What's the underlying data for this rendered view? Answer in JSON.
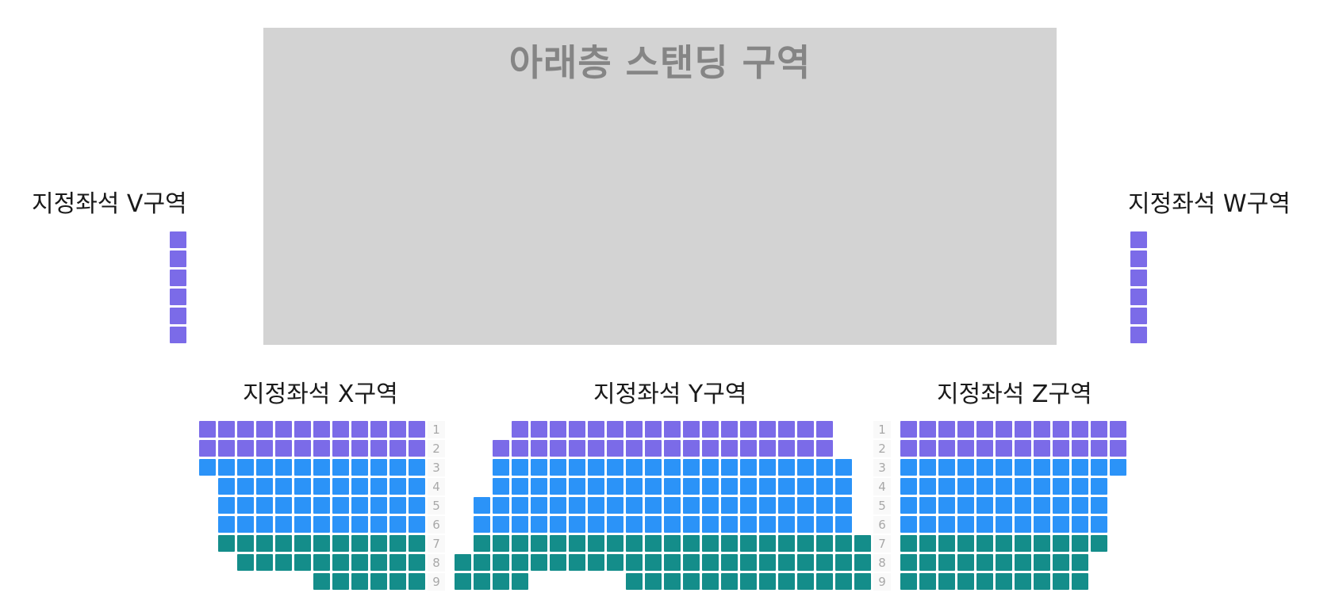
{
  "stage": {
    "label": "아래층 스탠딩 구역"
  },
  "zones": {
    "V": {
      "title": "지정좌석 V구역",
      "seats": 6
    },
    "W": {
      "title": "지정좌석 W구역",
      "seats": 6
    },
    "X": {
      "title": "지정좌석 X구역"
    },
    "Y": {
      "title": "지정좌석 Y구역"
    },
    "Z": {
      "title": "지정좌석 Z구역"
    }
  },
  "seat_colors": {
    "purple": "#7b6be8",
    "blue": "#2b93f8",
    "teal": "#148d8a"
  },
  "rows": [
    {
      "label": "1",
      "color": "purple",
      "X": [
        1,
        12
      ],
      "Y": [
        4,
        20
      ],
      "Z": [
        1,
        12
      ]
    },
    {
      "label": "2",
      "color": "purple",
      "X": [
        1,
        12
      ],
      "Y": [
        3,
        20
      ],
      "Z": [
        1,
        12
      ]
    },
    {
      "label": "3",
      "color": "blue",
      "X": [
        1,
        12
      ],
      "Y": [
        3,
        21
      ],
      "Z": [
        1,
        12
      ]
    },
    {
      "label": "4",
      "color": "blue",
      "X": [
        2,
        12
      ],
      "Y": [
        3,
        21
      ],
      "Z": [
        1,
        11
      ]
    },
    {
      "label": "5",
      "color": "blue",
      "X": [
        2,
        12
      ],
      "Y": [
        2,
        21
      ],
      "Z": [
        1,
        11
      ]
    },
    {
      "label": "6",
      "color": "blue",
      "X": [
        2,
        12
      ],
      "Y": [
        2,
        21
      ],
      "Z": [
        1,
        11
      ]
    },
    {
      "label": "7",
      "color": "teal",
      "X": [
        2,
        12
      ],
      "Y": [
        2,
        22
      ],
      "Z": [
        1,
        11
      ]
    },
    {
      "label": "8",
      "color": "teal",
      "X": [
        3,
        12
      ],
      "Y": [
        1,
        22
      ],
      "Z": [
        1,
        10
      ]
    },
    {
      "label": "9",
      "color": "teal",
      "X": [
        7,
        12
      ],
      "Y": [
        [
          1,
          4
        ],
        [
          10,
          22
        ]
      ],
      "Z": [
        1,
        10
      ]
    }
  ]
}
